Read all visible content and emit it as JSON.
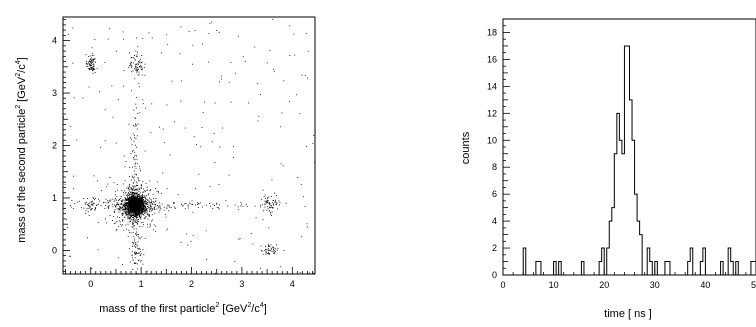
{
  "chart_data": [
    {
      "type": "scatter",
      "title": "",
      "xlabel": {
        "prefix": "mass of the first particle",
        "sup": "2",
        "unit_open": " [GeV",
        "unit_sup1": "2",
        "unit_mid": "/c",
        "unit_sup2": "4",
        "unit_close": "]"
      },
      "ylabel": {
        "prefix": "mass of the second particle",
        "sup": "2",
        "unit_open": " [GeV",
        "unit_sup1": "2",
        "unit_mid": "/c",
        "unit_sup2": "4",
        "unit_close": "]"
      },
      "xlim": [
        -0.55,
        4.45
      ],
      "ylim": [
        -0.45,
        4.45
      ],
      "xticks": [
        0,
        1,
        2,
        3,
        4
      ],
      "yticks": [
        0,
        1,
        2,
        3,
        4
      ],
      "clusters": [
        {
          "x": 0.87,
          "y": 0.87,
          "sx": 0.09,
          "sy": 0.09,
          "n": 1400
        },
        {
          "x": 0.87,
          "y": 0.87,
          "sx": 0.22,
          "sy": 0.22,
          "n": 500
        },
        {
          "x": 0.87,
          "y": 0.87,
          "sx": 0.05,
          "sy": 1.0,
          "n": 180
        },
        {
          "x": 0.87,
          "y": 0.87,
          "sx": 1.2,
          "sy": 0.05,
          "n": 180
        },
        {
          "x": 0.0,
          "y": 3.55,
          "sx": 0.05,
          "sy": 0.09,
          "n": 80
        },
        {
          "x": 0.9,
          "y": 3.55,
          "sx": 0.07,
          "sy": 0.12,
          "n": 70
        },
        {
          "x": 3.57,
          "y": 0.92,
          "sx": 0.1,
          "sy": 0.08,
          "n": 60
        },
        {
          "x": 3.57,
          "y": 0.02,
          "sx": 0.1,
          "sy": 0.05,
          "n": 45
        },
        {
          "x": 0.0,
          "y": 0.87,
          "sx": 0.05,
          "sy": 0.1,
          "n": 30
        },
        {
          "x": 0.9,
          "y": 0.0,
          "sx": 0.06,
          "sy": 0.06,
          "n": 25
        }
      ],
      "uniform_background_points": 220
    },
    {
      "type": "histogram",
      "title": "",
      "xlabel": "time [ ns ]",
      "ylabel": "counts",
      "xlim": [
        0,
        50
      ],
      "ylim": [
        0,
        19
      ],
      "xticks": [
        0,
        10,
        20,
        30,
        40,
        50
      ],
      "yticks": [
        0,
        2,
        4,
        6,
        8,
        10,
        12,
        14,
        16,
        18
      ],
      "bin_width": 0.5,
      "bins": [
        {
          "x": 4.0,
          "count": 2
        },
        {
          "x": 6.5,
          "count": 1
        },
        {
          "x": 7.0,
          "count": 1
        },
        {
          "x": 10.0,
          "count": 1
        },
        {
          "x": 11.0,
          "count": 1
        },
        {
          "x": 15.5,
          "count": 1
        },
        {
          "x": 19.0,
          "count": 1
        },
        {
          "x": 19.5,
          "count": 2
        },
        {
          "x": 20.5,
          "count": 2
        },
        {
          "x": 21.0,
          "count": 4
        },
        {
          "x": 21.5,
          "count": 5
        },
        {
          "x": 22.0,
          "count": 9
        },
        {
          "x": 22.5,
          "count": 12
        },
        {
          "x": 23.0,
          "count": 10
        },
        {
          "x": 23.5,
          "count": 9
        },
        {
          "x": 24.0,
          "count": 17
        },
        {
          "x": 24.5,
          "count": 17
        },
        {
          "x": 25.0,
          "count": 13
        },
        {
          "x": 25.5,
          "count": 10
        },
        {
          "x": 26.0,
          "count": 6
        },
        {
          "x": 26.5,
          "count": 4
        },
        {
          "x": 27.0,
          "count": 3
        },
        {
          "x": 28.5,
          "count": 2
        },
        {
          "x": 29.0,
          "count": 1
        },
        {
          "x": 30.0,
          "count": 1
        },
        {
          "x": 32.0,
          "count": 1
        },
        {
          "x": 32.5,
          "count": 1
        },
        {
          "x": 36.5,
          "count": 1
        },
        {
          "x": 37.0,
          "count": 2
        },
        {
          "x": 39.0,
          "count": 1
        },
        {
          "x": 39.5,
          "count": 2
        },
        {
          "x": 43.0,
          "count": 1
        },
        {
          "x": 44.5,
          "count": 2
        },
        {
          "x": 45.0,
          "count": 1
        },
        {
          "x": 46.0,
          "count": 1
        },
        {
          "x": 49.0,
          "count": 1
        },
        {
          "x": 49.5,
          "count": 1
        }
      ]
    }
  ]
}
